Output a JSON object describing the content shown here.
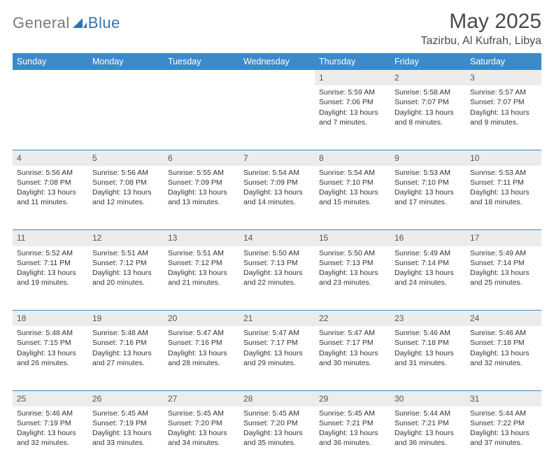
{
  "logo": {
    "text1": "General",
    "text2": "Blue"
  },
  "header": {
    "month": "May 2025",
    "location": "Tazirbu, Al Kufrah, Libya"
  },
  "colors": {
    "header_bg": "#3c8ac9",
    "header_text": "#ffffff",
    "daynum_bg": "#ececec",
    "divider": "#3c8ac9",
    "logo_gray": "#7a7a7a",
    "logo_blue": "#2e74b5",
    "body_text": "#333333"
  },
  "weekdays": [
    "Sunday",
    "Monday",
    "Tuesday",
    "Wednesday",
    "Thursday",
    "Friday",
    "Saturday"
  ],
  "weeks": [
    [
      null,
      null,
      null,
      null,
      {
        "n": "1",
        "sunrise": "Sunrise: 5:59 AM",
        "sunset": "Sunset: 7:06 PM",
        "daylight": "Daylight: 13 hours and 7 minutes."
      },
      {
        "n": "2",
        "sunrise": "Sunrise: 5:58 AM",
        "sunset": "Sunset: 7:07 PM",
        "daylight": "Daylight: 13 hours and 8 minutes."
      },
      {
        "n": "3",
        "sunrise": "Sunrise: 5:57 AM",
        "sunset": "Sunset: 7:07 PM",
        "daylight": "Daylight: 13 hours and 9 minutes."
      }
    ],
    [
      {
        "n": "4",
        "sunrise": "Sunrise: 5:56 AM",
        "sunset": "Sunset: 7:08 PM",
        "daylight": "Daylight: 13 hours and 11 minutes."
      },
      {
        "n": "5",
        "sunrise": "Sunrise: 5:56 AM",
        "sunset": "Sunset: 7:08 PM",
        "daylight": "Daylight: 13 hours and 12 minutes."
      },
      {
        "n": "6",
        "sunrise": "Sunrise: 5:55 AM",
        "sunset": "Sunset: 7:09 PM",
        "daylight": "Daylight: 13 hours and 13 minutes."
      },
      {
        "n": "7",
        "sunrise": "Sunrise: 5:54 AM",
        "sunset": "Sunset: 7:09 PM",
        "daylight": "Daylight: 13 hours and 14 minutes."
      },
      {
        "n": "8",
        "sunrise": "Sunrise: 5:54 AM",
        "sunset": "Sunset: 7:10 PM",
        "daylight": "Daylight: 13 hours and 15 minutes."
      },
      {
        "n": "9",
        "sunrise": "Sunrise: 5:53 AM",
        "sunset": "Sunset: 7:10 PM",
        "daylight": "Daylight: 13 hours and 17 minutes."
      },
      {
        "n": "10",
        "sunrise": "Sunrise: 5:53 AM",
        "sunset": "Sunset: 7:11 PM",
        "daylight": "Daylight: 13 hours and 18 minutes."
      }
    ],
    [
      {
        "n": "11",
        "sunrise": "Sunrise: 5:52 AM",
        "sunset": "Sunset: 7:11 PM",
        "daylight": "Daylight: 13 hours and 19 minutes."
      },
      {
        "n": "12",
        "sunrise": "Sunrise: 5:51 AM",
        "sunset": "Sunset: 7:12 PM",
        "daylight": "Daylight: 13 hours and 20 minutes."
      },
      {
        "n": "13",
        "sunrise": "Sunrise: 5:51 AM",
        "sunset": "Sunset: 7:12 PM",
        "daylight": "Daylight: 13 hours and 21 minutes."
      },
      {
        "n": "14",
        "sunrise": "Sunrise: 5:50 AM",
        "sunset": "Sunset: 7:13 PM",
        "daylight": "Daylight: 13 hours and 22 minutes."
      },
      {
        "n": "15",
        "sunrise": "Sunrise: 5:50 AM",
        "sunset": "Sunset: 7:13 PM",
        "daylight": "Daylight: 13 hours and 23 minutes."
      },
      {
        "n": "16",
        "sunrise": "Sunrise: 5:49 AM",
        "sunset": "Sunset: 7:14 PM",
        "daylight": "Daylight: 13 hours and 24 minutes."
      },
      {
        "n": "17",
        "sunrise": "Sunrise: 5:49 AM",
        "sunset": "Sunset: 7:14 PM",
        "daylight": "Daylight: 13 hours and 25 minutes."
      }
    ],
    [
      {
        "n": "18",
        "sunrise": "Sunrise: 5:48 AM",
        "sunset": "Sunset: 7:15 PM",
        "daylight": "Daylight: 13 hours and 26 minutes."
      },
      {
        "n": "19",
        "sunrise": "Sunrise: 5:48 AM",
        "sunset": "Sunset: 7:16 PM",
        "daylight": "Daylight: 13 hours and 27 minutes."
      },
      {
        "n": "20",
        "sunrise": "Sunrise: 5:47 AM",
        "sunset": "Sunset: 7:16 PM",
        "daylight": "Daylight: 13 hours and 28 minutes."
      },
      {
        "n": "21",
        "sunrise": "Sunrise: 5:47 AM",
        "sunset": "Sunset: 7:17 PM",
        "daylight": "Daylight: 13 hours and 29 minutes."
      },
      {
        "n": "22",
        "sunrise": "Sunrise: 5:47 AM",
        "sunset": "Sunset: 7:17 PM",
        "daylight": "Daylight: 13 hours and 30 minutes."
      },
      {
        "n": "23",
        "sunrise": "Sunrise: 5:46 AM",
        "sunset": "Sunset: 7:18 PM",
        "daylight": "Daylight: 13 hours and 31 minutes."
      },
      {
        "n": "24",
        "sunrise": "Sunrise: 5:46 AM",
        "sunset": "Sunset: 7:18 PM",
        "daylight": "Daylight: 13 hours and 32 minutes."
      }
    ],
    [
      {
        "n": "25",
        "sunrise": "Sunrise: 5:46 AM",
        "sunset": "Sunset: 7:19 PM",
        "daylight": "Daylight: 13 hours and 32 minutes."
      },
      {
        "n": "26",
        "sunrise": "Sunrise: 5:45 AM",
        "sunset": "Sunset: 7:19 PM",
        "daylight": "Daylight: 13 hours and 33 minutes."
      },
      {
        "n": "27",
        "sunrise": "Sunrise: 5:45 AM",
        "sunset": "Sunset: 7:20 PM",
        "daylight": "Daylight: 13 hours and 34 minutes."
      },
      {
        "n": "28",
        "sunrise": "Sunrise: 5:45 AM",
        "sunset": "Sunset: 7:20 PM",
        "daylight": "Daylight: 13 hours and 35 minutes."
      },
      {
        "n": "29",
        "sunrise": "Sunrise: 5:45 AM",
        "sunset": "Sunset: 7:21 PM",
        "daylight": "Daylight: 13 hours and 36 minutes."
      },
      {
        "n": "30",
        "sunrise": "Sunrise: 5:44 AM",
        "sunset": "Sunset: 7:21 PM",
        "daylight": "Daylight: 13 hours and 36 minutes."
      },
      {
        "n": "31",
        "sunrise": "Sunrise: 5:44 AM",
        "sunset": "Sunset: 7:22 PM",
        "daylight": "Daylight: 13 hours and 37 minutes."
      }
    ]
  ]
}
